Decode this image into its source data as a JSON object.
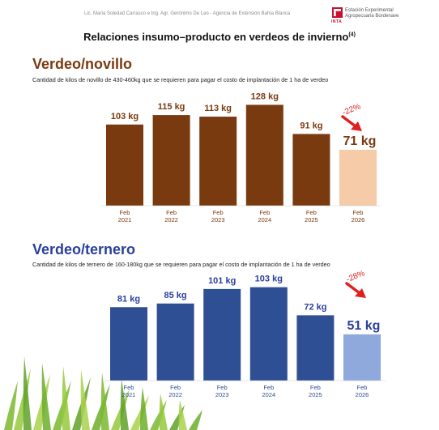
{
  "header": {
    "credit": "Lic. María Soledad Carrasco e Ing. Agr. Gerónimo De Leo  -  Agencia de Extensión Bahía Blanca",
    "logo_text": "INTA",
    "institution_line1": "Estación Experimental",
    "institution_line2": "Agropecuaria Bordenave"
  },
  "title": "Relaciones insumo–producto en verdeos de invierno",
  "title_note": "(4)",
  "colors": {
    "brown": "#7a3a0f",
    "brown_light": "#f5cba8",
    "blue": "#2f4f94",
    "blue_light": "#8fa9dc",
    "arrow_red": "#e02020",
    "title_blue": "#2a3f9c"
  },
  "chart_data": [
    {
      "type": "bar",
      "title": "Verdeo/novillo",
      "subtitle": "Cantidad de kilos de novillo de 430-460kg que se requieren para pagar el costo de implantación de 1 ha de verdeo",
      "categories": [
        "Feb 2021",
        "Feb 2022",
        "Feb 2023",
        "Feb 2024",
        "Feb 2025",
        "Feb 2026"
      ],
      "category_lines": [
        [
          "Feb",
          "2021"
        ],
        [
          "Feb",
          "2022"
        ],
        [
          "Feb",
          "2023"
        ],
        [
          "Feb",
          "2024"
        ],
        [
          "Feb",
          "2025"
        ],
        [
          "Feb",
          "2026"
        ]
      ],
      "values": [
        103,
        115,
        113,
        128,
        91,
        71
      ],
      "labels": [
        "103 kg",
        "115 kg",
        "113 kg",
        "128 kg",
        "91 kg",
        "71 kg"
      ],
      "highlight_index": 5,
      "annotation": "-22%",
      "unit": "kg",
      "ylim": [
        0,
        130
      ]
    },
    {
      "type": "bar",
      "title": "Verdeo/ternero",
      "subtitle": "Cantidad de kilos de ternero de 160-180kg que se requieren para pagar el costo de implantación de 1 ha de verdeo",
      "categories": [
        "Feb 2021",
        "Feb 2022",
        "Feb 2023",
        "Feb 2024",
        "Feb 2025",
        "Feb 2026"
      ],
      "category_lines": [
        [
          "Feb",
          "2021"
        ],
        [
          "Feb",
          "2022"
        ],
        [
          "Feb",
          "2023"
        ],
        [
          "Feb",
          "2024"
        ],
        [
          "Feb",
          "2025"
        ],
        [
          "Feb",
          "2026"
        ]
      ],
      "values": [
        81,
        85,
        101,
        103,
        72,
        51
      ],
      "labels": [
        "81 kg",
        "85 kg",
        "101 kg",
        "103 kg",
        "72 kg",
        "51 kg"
      ],
      "highlight_index": 5,
      "annotation": "-28%",
      "unit": "kg",
      "ylim": [
        0,
        105
      ]
    }
  ]
}
